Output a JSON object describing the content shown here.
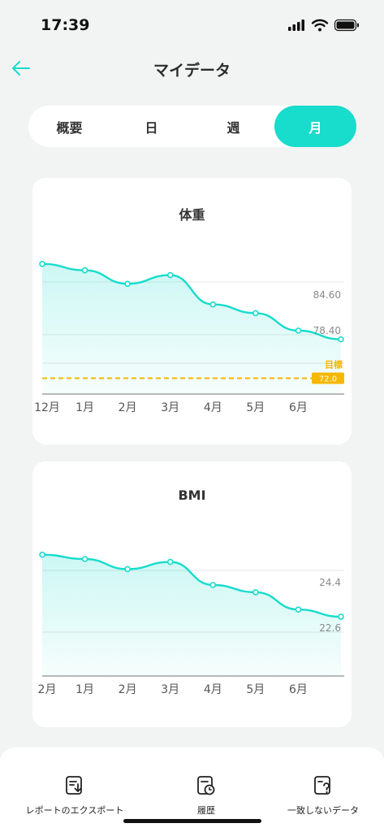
{
  "status": {
    "time": "17:39"
  },
  "header": {
    "title": "マイデータ",
    "back_icon": "arrow-left-icon"
  },
  "tabs": [
    {
      "label": "概要",
      "active": false
    },
    {
      "label": "日",
      "active": false
    },
    {
      "label": "週",
      "active": false
    },
    {
      "label": "月",
      "active": true
    }
  ],
  "colors": {
    "accent": "#18DCCC",
    "goal": "#F5B700"
  },
  "chart_data": [
    {
      "type": "area",
      "title": "体重",
      "categories": [
        "12月",
        "1月",
        "2月",
        "3月",
        "4月",
        "5月",
        "6月",
        ""
      ],
      "series": [
        {
          "values": [
            86.4,
            85.6,
            83.9,
            85.0,
            81.3,
            80.2,
            78.0,
            76.9
          ]
        }
      ],
      "value_labels": [
        "84.60",
        "78.40"
      ],
      "goal": {
        "label": "目標",
        "value": "72.0"
      },
      "ylim": [
        70.0,
        87.0
      ],
      "grid": true,
      "legend": "none"
    },
    {
      "type": "area",
      "title": "BMI",
      "categories": [
        "2月",
        "1月",
        "2月",
        "3月",
        "4月",
        "5月",
        "6月",
        ""
      ],
      "series": [
        {
          "values": [
            25.4,
            25.1,
            24.4,
            24.9,
            23.3,
            22.8,
            21.6,
            21.1
          ]
        }
      ],
      "value_labels": [
        "24.4",
        "22.6"
      ],
      "ylim": [
        17.0,
        26.0
      ],
      "grid": true,
      "legend": "none"
    }
  ],
  "bottom_bar": [
    {
      "label": "レポートのエクスポート",
      "icon": "export-report-icon"
    },
    {
      "label": "履歴",
      "icon": "history-icon"
    },
    {
      "label": "一致しないデータ",
      "icon": "unmatched-data-icon"
    }
  ]
}
